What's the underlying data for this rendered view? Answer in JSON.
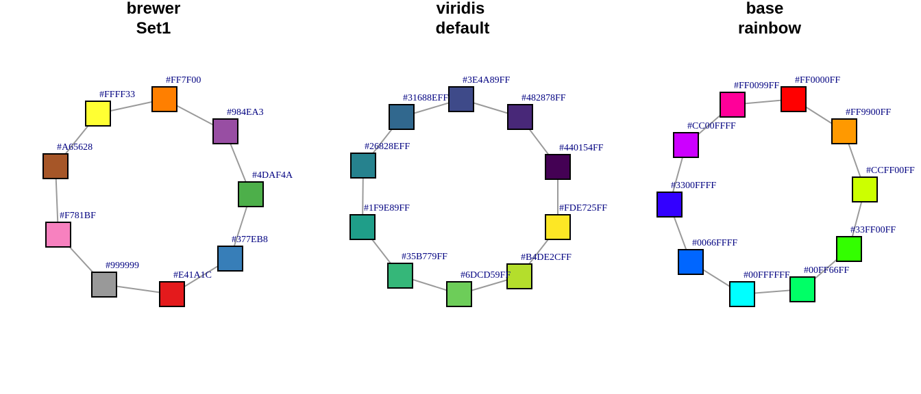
{
  "label_color": "#000080",
  "edge_color": "#9a9a9a",
  "panels": [
    {
      "title_line1": "brewer",
      "title_line2": "Set1",
      "nodes": [
        {
          "label": "#FF7F00",
          "color": "#FF7F00"
        },
        {
          "label": "#984EA3",
          "color": "#984EA3"
        },
        {
          "label": "#4DAF4A",
          "color": "#4DAF4A"
        },
        {
          "label": "#377EB8",
          "color": "#377EB8"
        },
        {
          "label": "#E41A1C",
          "color": "#E41A1C"
        },
        {
          "label": "#999999",
          "color": "#999999"
        },
        {
          "label": "#F781BF",
          "color": "#F781BF"
        },
        {
          "label": "#A65628",
          "color": "#A65628"
        },
        {
          "label": "#FFFF33",
          "color": "#FFFF33"
        }
      ]
    },
    {
      "title_line1": "viridis",
      "title_line2": "default",
      "nodes": [
        {
          "label": "#3E4A89FF",
          "color": "#3E4A89"
        },
        {
          "label": "#482878FF",
          "color": "#482878"
        },
        {
          "label": "#440154FF",
          "color": "#440154"
        },
        {
          "label": "#FDE725FF",
          "color": "#FDE725"
        },
        {
          "label": "#B4DE2CFF",
          "color": "#B4DE2C"
        },
        {
          "label": "#6DCD59FF",
          "color": "#6DCD59"
        },
        {
          "label": "#35B779FF",
          "color": "#35B779"
        },
        {
          "label": "#1F9E89FF",
          "color": "#1F9E89"
        },
        {
          "label": "#26828EFF",
          "color": "#26828E"
        },
        {
          "label": "#31688EFF",
          "color": "#31688E"
        }
      ]
    },
    {
      "title_line1": "base",
      "title_line2": "rainbow",
      "nodes": [
        {
          "label": "#FF0000FF",
          "color": "#FF0000"
        },
        {
          "label": "#FF9900FF",
          "color": "#FF9900"
        },
        {
          "label": "#CCFF00FF",
          "color": "#CCFF00"
        },
        {
          "label": "#33FF00FF",
          "color": "#33FF00"
        },
        {
          "label": "#00FF66FF",
          "color": "#00FF66"
        },
        {
          "label": "#00FFFFFF",
          "color": "#00FFFF"
        },
        {
          "label": "#0066FFFF",
          "color": "#0066FF"
        },
        {
          "label": "#3300FFFF",
          "color": "#3300FF"
        },
        {
          "label": "#CC00FFFF",
          "color": "#CC00FF"
        },
        {
          "label": "#FF0099FF",
          "color": "#FF0099"
        }
      ]
    }
  ]
}
